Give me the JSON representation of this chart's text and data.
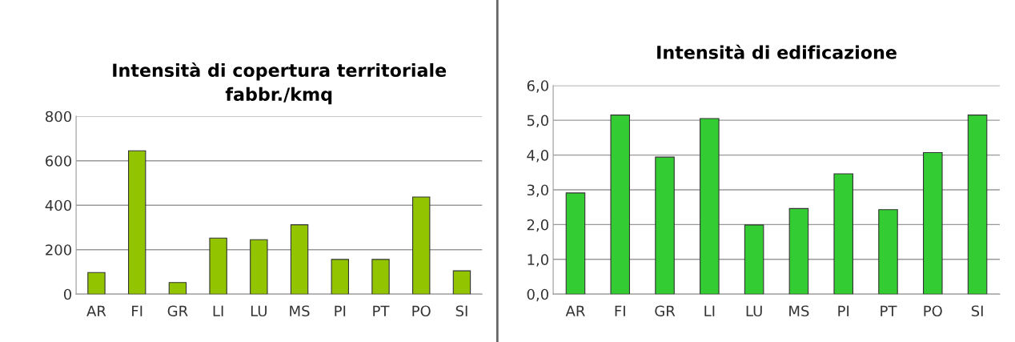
{
  "chart_data": [
    {
      "type": "bar",
      "title": "Intensità di copertura territoriale\nfabbr./kmq",
      "categories": [
        "AR",
        "FI",
        "GR",
        "LI",
        "LU",
        "MS",
        "PI",
        "PT",
        "PO",
        "SI"
      ],
      "values": [
        97,
        645,
        52,
        252,
        245,
        312,
        156,
        156,
        437,
        105
      ],
      "color": "#92c400",
      "ylim": [
        0,
        800
      ],
      "yticks": [
        0,
        200,
        400,
        600,
        800
      ],
      "grid": "y"
    },
    {
      "type": "bar",
      "title": "Intensità di edificazione",
      "categories": [
        "AR",
        "FI",
        "GR",
        "LI",
        "LU",
        "MS",
        "PI",
        "PT",
        "PO",
        "SI"
      ],
      "values": [
        2.91,
        5.15,
        3.94,
        5.05,
        1.99,
        2.46,
        3.46,
        2.43,
        4.07,
        5.15
      ],
      "color": "#33cc33",
      "ylim": [
        0,
        6
      ],
      "yticks": [
        {
          "value": 0,
          "label": "0,0"
        },
        {
          "value": 1,
          "label": "1,0"
        },
        {
          "value": 2,
          "label": "2,0"
        },
        {
          "value": 3,
          "label": "3,0"
        },
        {
          "value": 4,
          "label": "4,0"
        },
        {
          "value": 5,
          "label": "5,0"
        },
        {
          "value": 6,
          "label": "6,0"
        }
      ],
      "grid": "y"
    }
  ]
}
